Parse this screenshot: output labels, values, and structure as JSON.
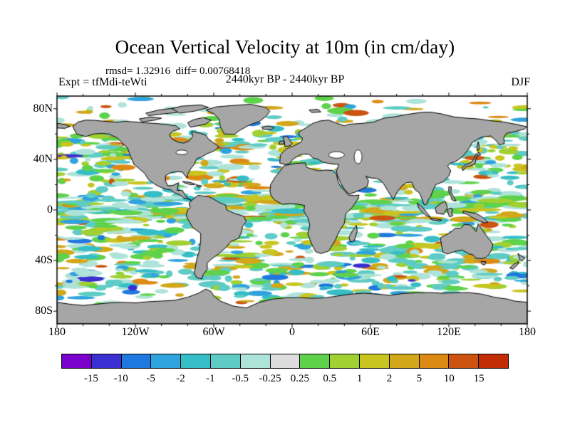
{
  "title": "Ocean Vertical Velocity at 10m (in cm/day)",
  "stats": "rmsd= 1.32916  diff= 0.00768418",
  "header": {
    "experiment": "Expt = tfMdi-teWti",
    "period": "2440kyr BP - 2440kyr BP",
    "season": "DJF"
  },
  "chart_data": {
    "type": "heatmap",
    "title": "Ocean Vertical Velocity at 10m (in cm/day)",
    "variable": "Ocean Vertical Velocity",
    "depth": "10m",
    "units": "cm/day",
    "rmsd": 1.32916,
    "diff": 0.00768418,
    "experiment": "tfMdi-teWti",
    "period": "2440kyr BP - 2440kyr BP",
    "season": "DJF",
    "projection": "equirectangular world map",
    "lon_ticks": [
      "180",
      "120W",
      "60W",
      "0",
      "60E",
      "120E",
      "180"
    ],
    "lat_ticks": [
      "80N",
      "40N",
      "0",
      "40S",
      "80S"
    ],
    "lon_range": [
      -180,
      180
    ],
    "lat_range": [
      -90,
      90
    ],
    "colorbar": {
      "levels": [
        "-15",
        "-10",
        "-5",
        "-2",
        "-1",
        "-0.5",
        "-0.25",
        "0.25",
        "0.5",
        "1",
        "2",
        "5",
        "10",
        "15"
      ],
      "colors": [
        "#7a00cc",
        "#3a2fd0",
        "#1f78dd",
        "#2fa3dd",
        "#35bec6",
        "#5eccc4",
        "#aee3d9",
        "#dcdcdc",
        "#5ed24a",
        "#a0d032",
        "#c9c520",
        "#d2a71a",
        "#dd8a14",
        "#cc5410",
        "#c22d06"
      ],
      "orientation": "horizontal"
    },
    "land_color": "#a6a6a6",
    "ocean_background": "#ffffff",
    "coastline_color": "#000000"
  }
}
